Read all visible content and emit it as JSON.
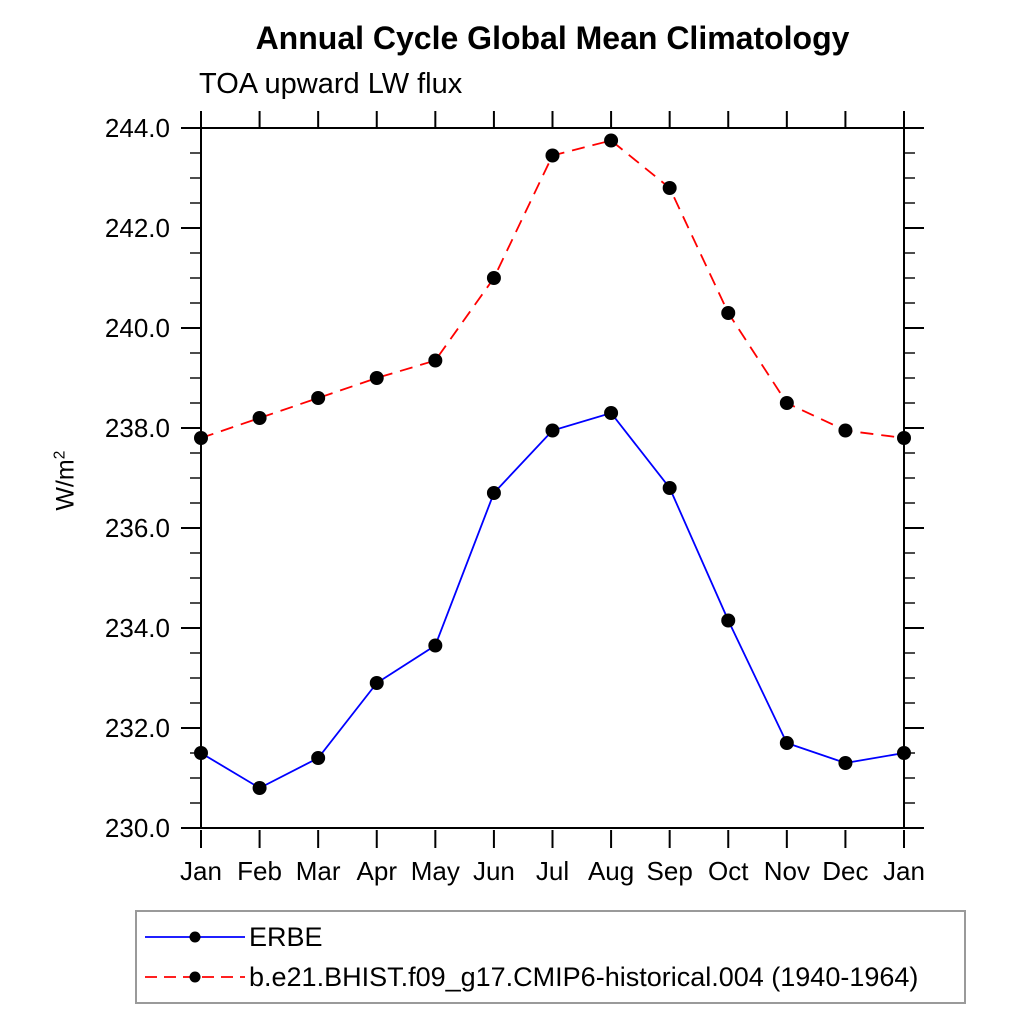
{
  "page": {
    "background": "#ffffff"
  },
  "header": {
    "title": "Annual Cycle Global Mean Climatology",
    "subtitle": "TOA upward LW flux"
  },
  "y_axis": {
    "unit_base": "W/m",
    "unit_exponent": "2"
  },
  "legend": {
    "entries": [
      {
        "label": "ERBE",
        "color": "#0000ff",
        "style": "solid"
      },
      {
        "label": "b.e21.BHIST.f09_g17.CMIP6-historical.004 (1940-1964)",
        "color": "#ff0000",
        "style": "dashed"
      }
    ]
  },
  "chart_data": {
    "type": "line",
    "title": "Annual Cycle Global Mean Climatology",
    "subtitle": "TOA upward LW flux",
    "ylabel": "W/m2",
    "categories": [
      "Jan",
      "Feb",
      "Mar",
      "Apr",
      "May",
      "Jun",
      "Jul",
      "Aug",
      "Sep",
      "Oct",
      "Nov",
      "Dec",
      "Jan"
    ],
    "ylim": [
      230.0,
      244.0
    ],
    "ytick_interval": 2.0,
    "yminor_interval": 0.5,
    "ytick_labels": [
      "230.0",
      "232.0",
      "234.0",
      "236.0",
      "238.0",
      "240.0",
      "242.0",
      "244.0"
    ],
    "grid": false,
    "legend_position": "bottom-left",
    "marker": {
      "shape": "circle",
      "color": "#000000",
      "radius": 7
    },
    "axis_color": "#000000",
    "series": [
      {
        "name": "ERBE",
        "color": "#0000ff",
        "line_style": "solid",
        "values": [
          231.5,
          230.8,
          231.4,
          232.9,
          233.65,
          236.7,
          237.95,
          238.3,
          236.8,
          234.15,
          231.7,
          231.3,
          231.5
        ]
      },
      {
        "name": "b.e21.BHIST.f09_g17.CMIP6-historical.004 (1940-1964)",
        "color": "#ff0000",
        "line_style": "dashed",
        "values": [
          237.8,
          238.2,
          238.6,
          239.0,
          239.35,
          241.0,
          243.45,
          243.75,
          242.8,
          240.3,
          238.5,
          237.95,
          237.8
        ]
      }
    ]
  }
}
